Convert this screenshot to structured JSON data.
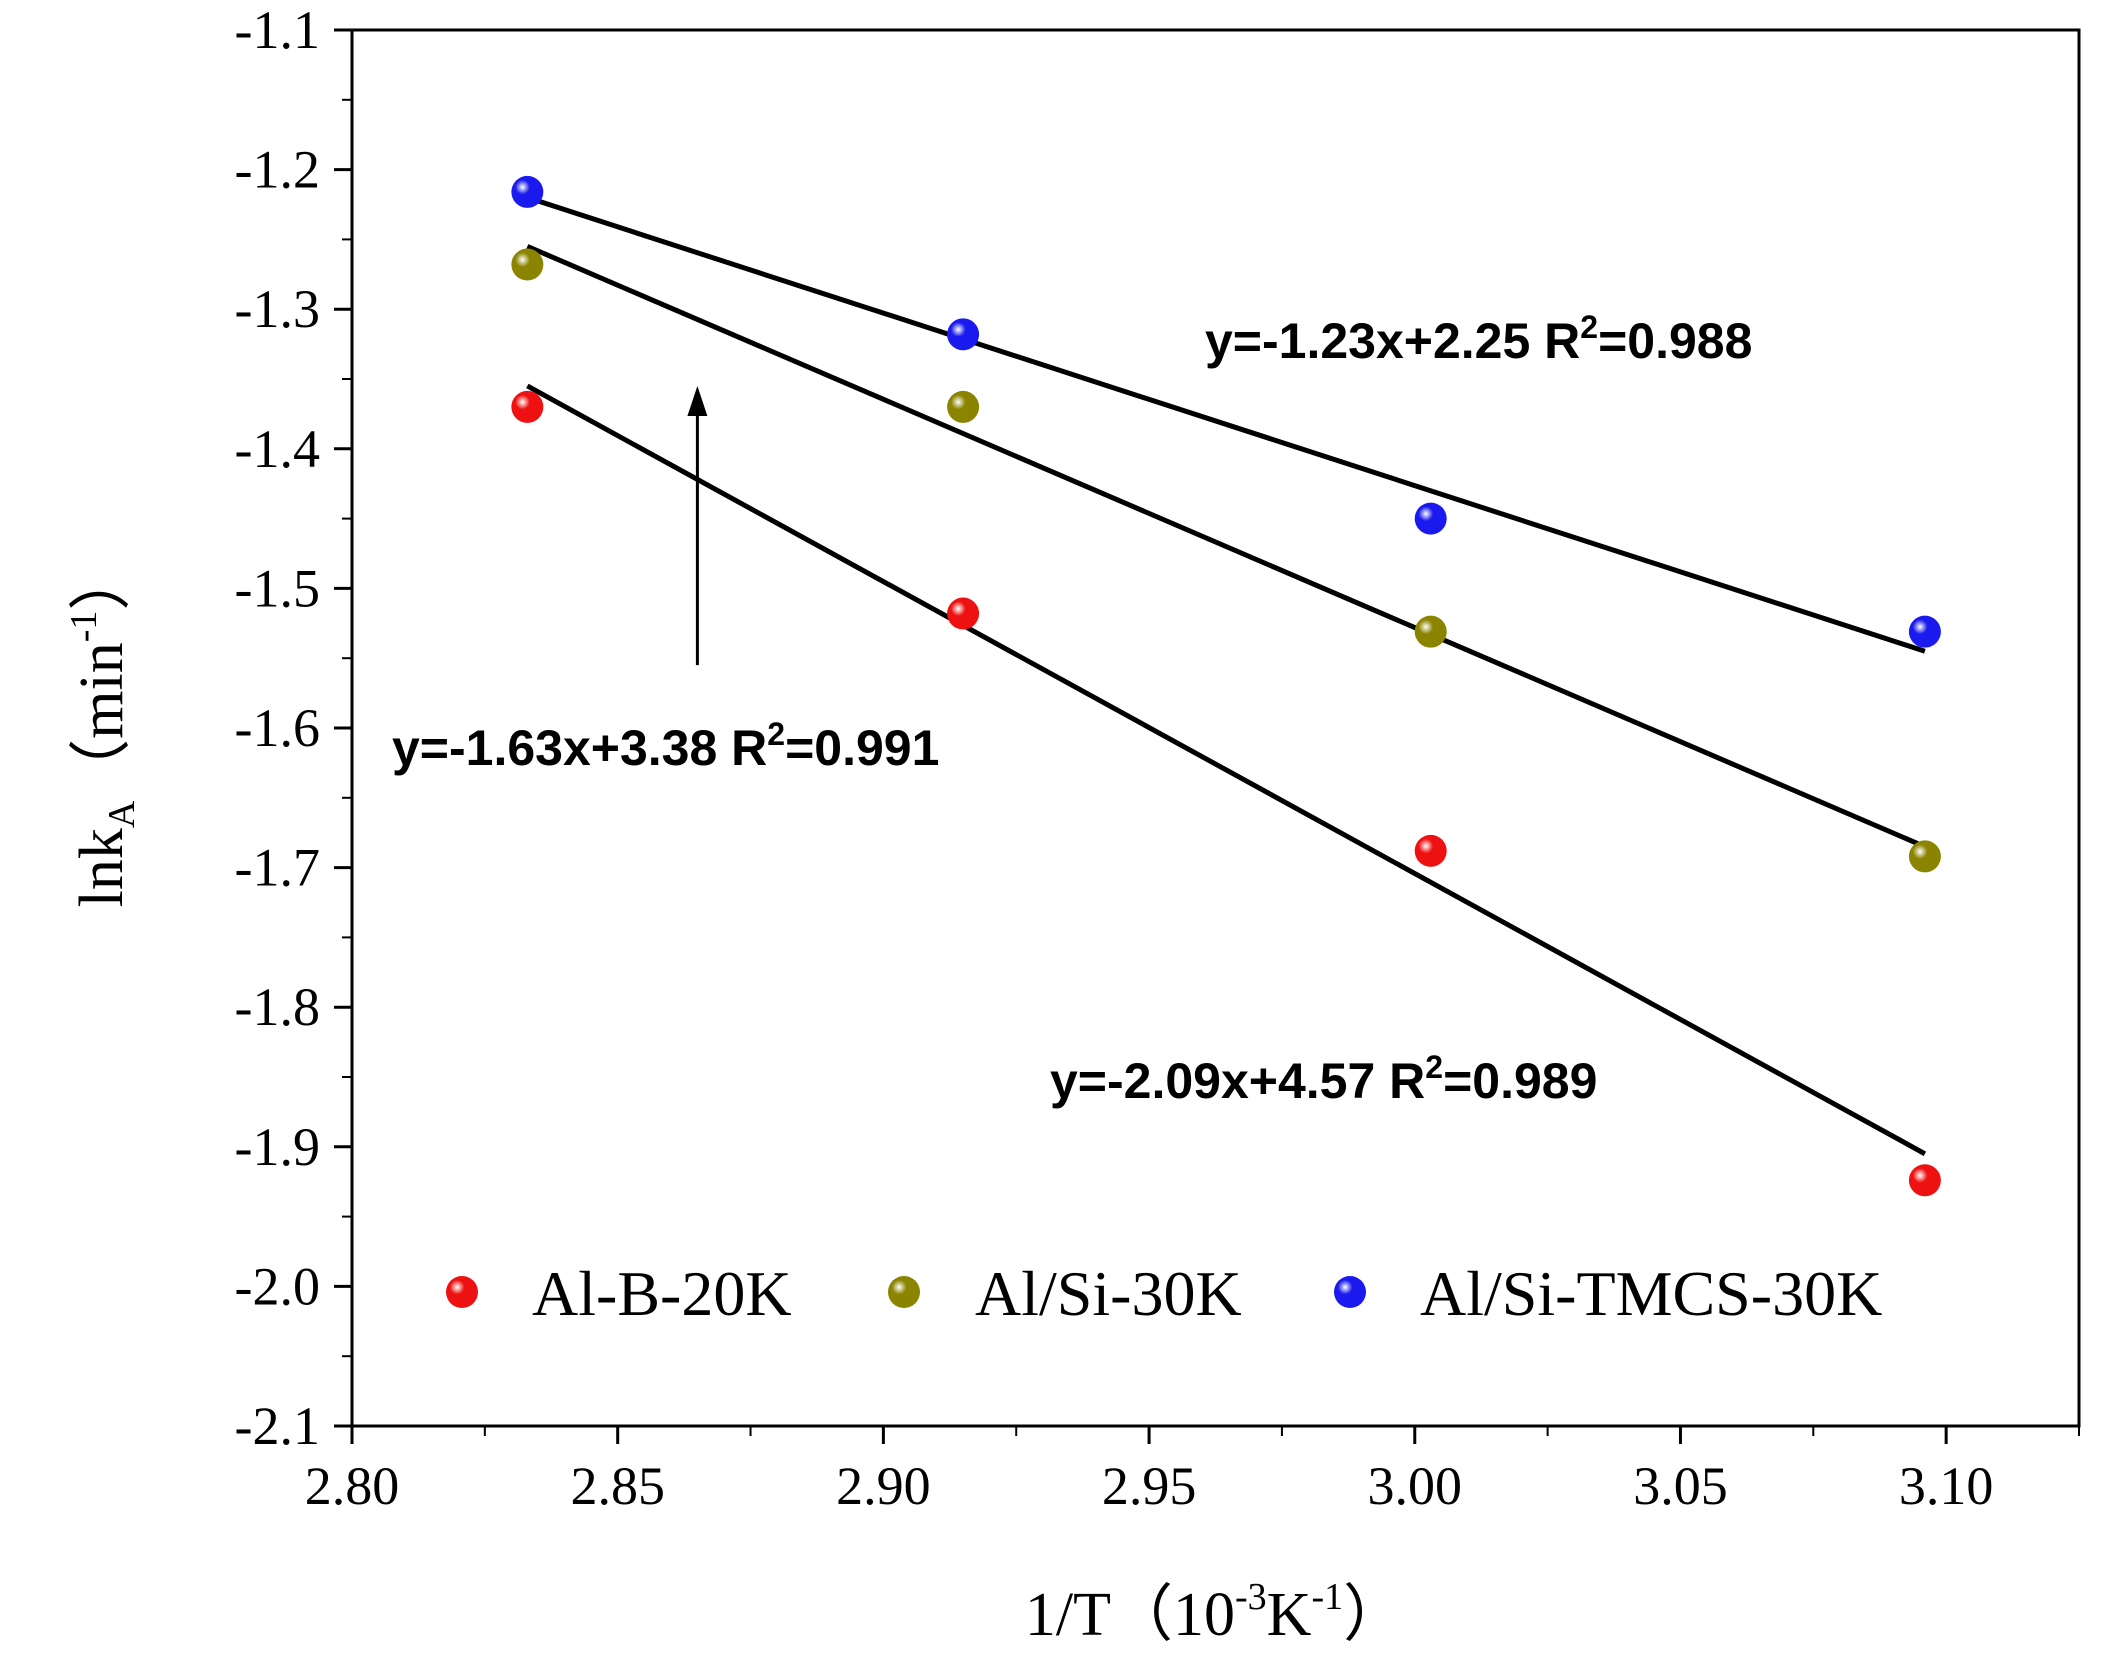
{
  "chart_data": {
    "type": "scatter",
    "xlabel": {
      "main": "1/T（",
      "exp_base": "10",
      "exp1": "-3",
      "unit": "K",
      "exp2": "-1",
      "close": "）"
    },
    "ylabel": {
      "main": "lnk",
      "sub": "A",
      "open": "（",
      "unit": "min",
      "exp": "-1",
      "close": "）"
    },
    "xlim": [
      2.8,
      3.125
    ],
    "ylim": [
      -2.1,
      -1.1
    ],
    "x_ticks": [
      2.8,
      2.85,
      2.9,
      2.95,
      3.0,
      3.05,
      3.1
    ],
    "x_tick_labels": [
      "2.80",
      "2.85",
      "2.90",
      "2.95",
      "3.00",
      "3.05",
      "3.10"
    ],
    "y_ticks": [
      -1.1,
      -1.2,
      -1.3,
      -1.4,
      -1.5,
      -1.6,
      -1.7,
      -1.8,
      -1.9,
      -2.0,
      -2.1
    ],
    "y_tick_labels": [
      "-1.1",
      "-1.2",
      "-1.3",
      "-1.4",
      "-1.5",
      "-1.6",
      "-1.7",
      "-1.8",
      "-1.9",
      "-2.0",
      "-2.1"
    ],
    "series": [
      {
        "name": "Al-B-20K",
        "color": "#ee1111",
        "x": [
          2.833,
          2.915,
          3.003,
          3.096
        ],
        "y": [
          -1.37,
          -1.518,
          -1.688,
          -1.924
        ],
        "fit": {
          "x0": 2.833,
          "y0": -1.355,
          "x1": 3.096,
          "y1": -1.905
        }
      },
      {
        "name": "Al/Si-30K",
        "color": "#8b8400",
        "x": [
          2.833,
          2.915,
          3.003,
          3.096
        ],
        "y": [
          -1.268,
          -1.37,
          -1.531,
          -1.692
        ],
        "fit": {
          "x0": 2.833,
          "y0": -1.255,
          "x1": 3.096,
          "y1": -1.685
        }
      },
      {
        "name": "Al/Si-TMCS-30K",
        "color": "#1a1aee",
        "x": [
          2.833,
          2.915,
          3.003,
          3.096
        ],
        "y": [
          -1.216,
          -1.318,
          -1.45,
          -1.531
        ],
        "fit": {
          "x0": 2.833,
          "y0": -1.22,
          "x1": 3.096,
          "y1": -1.545
        }
      }
    ],
    "annotations": [
      {
        "id": "eq-tmcs",
        "prefix": "y=-1.23x+2.25  R",
        "sup": "2",
        "suffix": "=0.988"
      },
      {
        "id": "eq-alsi",
        "prefix": "y=-1.63x+3.38  R",
        "sup": "2",
        "suffix": "=0.991"
      },
      {
        "id": "eq-alb",
        "prefix": "y=-2.09x+4.57  R",
        "sup": "2",
        "suffix": "=0.989"
      }
    ],
    "arrow": {
      "x": 2.865,
      "y_from": -1.555,
      "y_to": -1.355
    },
    "legend": {
      "position": "bottom-inside"
    }
  }
}
